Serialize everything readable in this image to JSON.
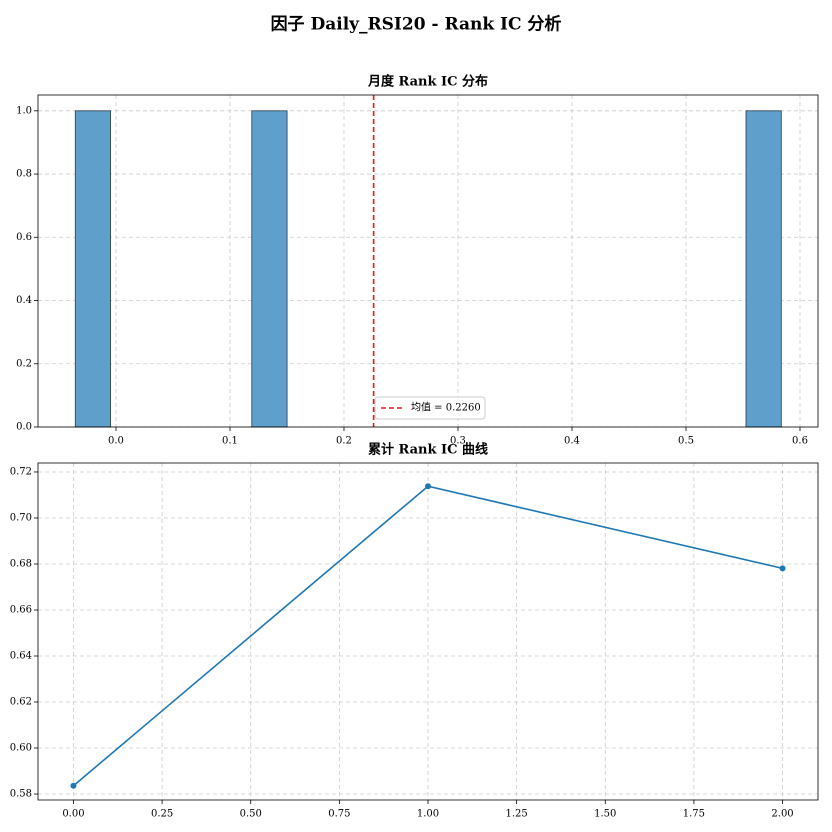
{
  "suptitle": "因子 Daily_RSI20 - Rank IC 分析",
  "chart_data": [
    {
      "type": "histogram",
      "title": "月度 Rank IC 分布",
      "bins": [
        -0.0357,
        -0.004735,
        0.02623,
        0.057195,
        0.08816,
        0.119125,
        0.15009,
        0.181055,
        0.21202,
        0.242985,
        0.27395,
        0.304915,
        0.33588,
        0.366845,
        0.39781,
        0.428775,
        0.45974,
        0.490705,
        0.52167,
        0.552635,
        0.5836
      ],
      "counts": [
        1,
        0,
        0,
        0,
        0,
        1,
        0,
        0,
        0,
        0,
        0,
        0,
        0,
        0,
        0,
        0,
        0,
        0,
        0,
        1
      ],
      "color": "#5f9fcc",
      "vlines": [
        {
          "value": 0.226,
          "label": "均值 = 0.2260",
          "color": "#e31a1c"
        }
      ],
      "xlim": [
        -0.0684,
        0.6158
      ],
      "ylim": [
        0,
        1.05
      ],
      "xticks": [
        {
          "value": 0,
          "label": "0.0"
        },
        0.1,
        0.2,
        0.3,
        0.4,
        0.5,
        0.6
      ],
      "yticks": [
        {
          "value": 0,
          "label": "0.0"
        },
        0.2,
        0.4,
        0.6,
        0.8,
        {
          "value": 1,
          "label": "1.0"
        }
      ],
      "grid": true,
      "legend": "lower center"
    },
    {
      "type": "line",
      "title": "累计 Rank IC 曲线",
      "x": [
        0,
        1,
        2
      ],
      "series": [
        {
          "color": "#1f77b4",
          "values": [
            0.5836,
            0.7138,
            0.6781
          ]
        }
      ],
      "xlim": [
        -0.1,
        2.1
      ],
      "ylim": [
        0.5774,
        0.7239
      ],
      "xticks": [
        {
          "value": 0,
          "label": "0.00"
        },
        0.25,
        {
          "value": 0.5,
          "label": "0.50"
        },
        0.75,
        {
          "value": 1,
          "label": "1.00"
        },
        1.25,
        {
          "value": 1.5,
          "label": "1.50"
        },
        1.75,
        {
          "value": 2,
          "label": "2.00"
        }
      ],
      "yticks": [
        0.58,
        {
          "value": 0.6,
          "label": "0.60"
        },
        0.62,
        0.64,
        0.66,
        0.68,
        {
          "value": 0.7,
          "label": "0.70"
        },
        0.72
      ],
      "grid": true
    }
  ]
}
